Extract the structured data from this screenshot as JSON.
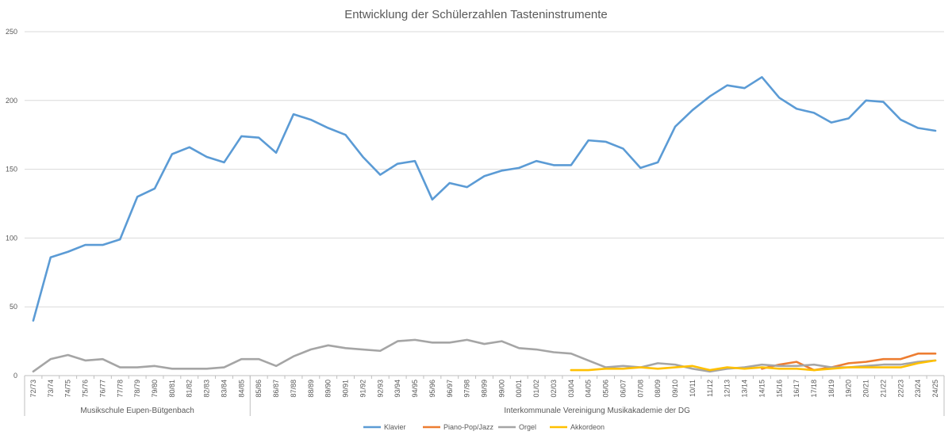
{
  "chart_data": {
    "type": "line",
    "title": "Entwicklung der Schülerzahlen Tasteninstrumente",
    "ylim": [
      0,
      250
    ],
    "yticks": [
      0,
      50,
      100,
      150,
      200,
      250
    ],
    "grid": true,
    "legend_position": "bottom",
    "categories": [
      "72/73",
      "73/74",
      "74/75",
      "75/76",
      "76/77",
      "77/78",
      "78/79",
      "79/80",
      "80/81",
      "81/82",
      "82/83",
      "83/84",
      "84/85",
      "85/86",
      "86/87",
      "87/88",
      "88/89",
      "89/90",
      "90/91",
      "91/92",
      "92/93",
      "93/94",
      "94/95",
      "95/96",
      "96/97",
      "97/98",
      "98/99",
      "99/00",
      "00/01",
      "01/02",
      "02/03",
      "03/04",
      "04/05",
      "05/06",
      "06/07",
      "07/08",
      "08/09",
      "09/10",
      "10/11",
      "11/12",
      "12/13",
      "13/14",
      "14/15",
      "15/16",
      "16/17",
      "17/18",
      "18/19",
      "19/20",
      "20/21",
      "21/22",
      "22/23",
      "23/24",
      "24/25"
    ],
    "groups": [
      {
        "label": "Musikschule Eupen-Bütgenbach",
        "start": 0,
        "end": 12
      },
      {
        "label": "Interkommunale Vereinigung Musikakademie der DG",
        "start": 13,
        "end": 52
      }
    ],
    "series": [
      {
        "name": "Klavier",
        "color": "#5B9BD5",
        "values": [
          40,
          86,
          90,
          95,
          95,
          99,
          130,
          136,
          161,
          166,
          159,
          155,
          174,
          173,
          162,
          190,
          186,
          180,
          175,
          159,
          146,
          154,
          156,
          128,
          140,
          137,
          145,
          149,
          151,
          156,
          153,
          153,
          171,
          170,
          165,
          151,
          155,
          181,
          193,
          203,
          211,
          209,
          217,
          202,
          194,
          191,
          184,
          187,
          200,
          199,
          186,
          180,
          178
        ]
      },
      {
        "name": "Piano-Pop/Jazz",
        "color": "#ED7D31",
        "values": [
          null,
          null,
          null,
          null,
          null,
          null,
          null,
          null,
          null,
          null,
          null,
          null,
          null,
          null,
          null,
          null,
          null,
          null,
          null,
          null,
          null,
          null,
          null,
          null,
          null,
          null,
          null,
          null,
          null,
          null,
          null,
          null,
          null,
          null,
          null,
          null,
          null,
          null,
          null,
          null,
          null,
          null,
          5,
          8,
          10,
          4,
          6,
          9,
          10,
          12,
          12,
          16,
          16
        ]
      },
      {
        "name": "Orgel",
        "color": "#A5A5A5",
        "values": [
          3,
          12,
          15,
          11,
          12,
          6,
          6,
          7,
          5,
          5,
          5,
          6,
          12,
          12,
          7,
          14,
          19,
          22,
          20,
          19,
          18,
          25,
          26,
          24,
          24,
          26,
          23,
          25,
          20,
          19,
          17,
          16,
          11,
          6,
          7,
          6,
          9,
          8,
          5,
          3,
          5,
          6,
          8,
          7,
          7,
          8,
          6,
          6,
          7,
          8,
          8,
          10,
          11
        ]
      },
      {
        "name": "Akkordeon",
        "color": "#FFC000",
        "values": [
          null,
          null,
          null,
          null,
          null,
          null,
          null,
          null,
          null,
          null,
          null,
          null,
          null,
          null,
          null,
          null,
          null,
          null,
          null,
          null,
          null,
          null,
          null,
          null,
          null,
          null,
          null,
          null,
          null,
          null,
          null,
          4,
          4,
          5,
          5,
          6,
          5,
          6,
          7,
          4,
          6,
          5,
          6,
          5,
          5,
          4,
          5,
          6,
          6,
          6,
          6,
          9,
          11
        ]
      }
    ]
  }
}
